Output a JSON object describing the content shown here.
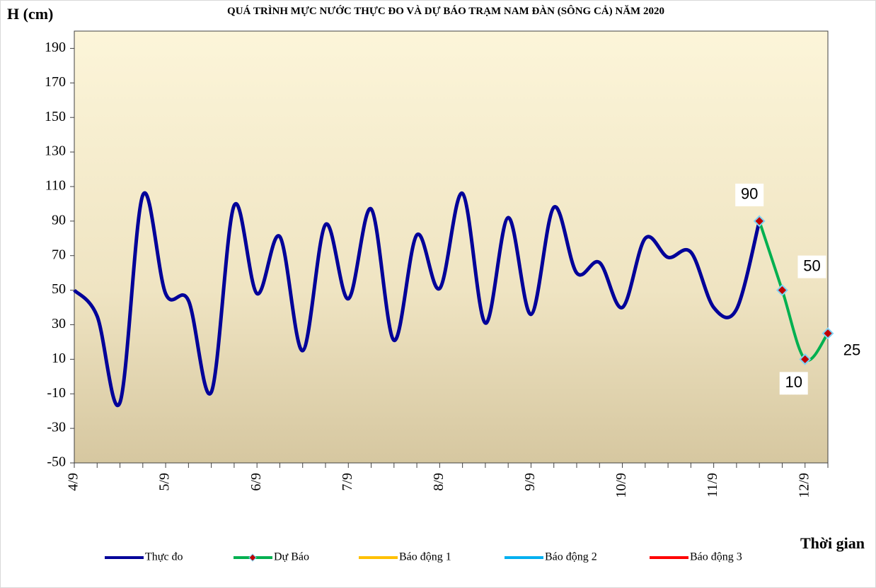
{
  "chart_data": {
    "type": "line",
    "title": "QUÁ TRÌNH MỰC NƯỚC THỰC ĐO VÀ DỰ BÁO TRẠM  NAM  ĐÀN (SÔNG CẢ) NĂM 2020",
    "y_label": "H (cm)",
    "x_label": "Thời gian",
    "categories": [
      "4/9",
      null,
      null,
      null,
      "5/9",
      null,
      null,
      null,
      "6/9",
      null,
      null,
      null,
      "7/9",
      null,
      null,
      null,
      "8/9",
      null,
      null,
      null,
      "9/9",
      null,
      null,
      null,
      "10/9",
      null,
      null,
      null,
      "11/9",
      null,
      null,
      null,
      "12/9",
      null
    ],
    "series": [
      {
        "name": "Thực đo",
        "color": "#000099",
        "values": [
          50,
          35,
          -15,
          105,
          48,
          44,
          -9,
          99,
          48,
          81,
          15,
          88,
          45,
          97,
          21,
          82,
          51,
          106,
          31,
          92,
          36,
          98,
          60,
          66,
          40,
          80,
          69,
          72,
          40,
          39,
          90,
          null,
          null,
          null
        ]
      },
      {
        "name": "Dự Báo",
        "color": "#00b050",
        "marker_color": "#c00000",
        "values": [
          null,
          null,
          null,
          null,
          null,
          null,
          null,
          null,
          null,
          null,
          null,
          null,
          null,
          null,
          null,
          null,
          null,
          null,
          null,
          null,
          null,
          null,
          null,
          null,
          null,
          null,
          null,
          null,
          null,
          null,
          90,
          50,
          10,
          25
        ],
        "data_labels": true
      },
      {
        "name": "Báo động 1",
        "color": "#ffc000",
        "values": [
          null,
          null,
          null,
          null,
          null,
          null,
          null,
          null,
          null,
          null,
          null,
          null,
          null,
          null,
          null,
          null,
          null,
          null,
          null,
          null,
          null,
          null,
          null,
          null,
          null,
          null,
          null,
          null,
          null,
          null,
          null,
          null,
          null,
          null
        ]
      },
      {
        "name": "Báo động 2",
        "color": "#00b0f0",
        "values": [
          null,
          null,
          null,
          null,
          null,
          null,
          null,
          null,
          null,
          null,
          null,
          null,
          null,
          null,
          null,
          null,
          null,
          null,
          null,
          null,
          null,
          null,
          null,
          null,
          null,
          null,
          null,
          null,
          null,
          null,
          null,
          null,
          null,
          null
        ]
      },
      {
        "name": "Báo động 3",
        "color": "#ff0000",
        "values": [
          null,
          null,
          null,
          null,
          null,
          null,
          null,
          null,
          null,
          null,
          null,
          null,
          null,
          null,
          null,
          null,
          null,
          null,
          null,
          null,
          null,
          null,
          null,
          null,
          null,
          null,
          null,
          null,
          null,
          null,
          null,
          null,
          null,
          null
        ]
      }
    ],
    "ylim": [
      -50,
      200
    ],
    "yticks": [
      -50,
      -30,
      -10,
      10,
      30,
      50,
      70,
      90,
      110,
      130,
      150,
      170,
      190
    ],
    "smooth": true
  }
}
